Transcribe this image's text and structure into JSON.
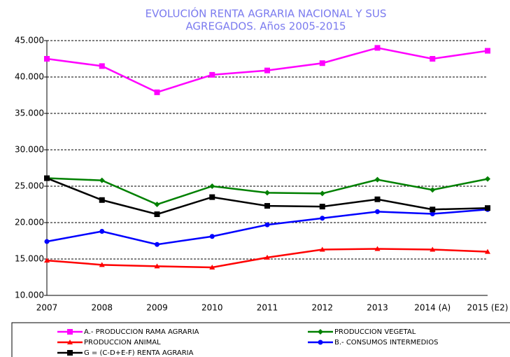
{
  "chart_data": {
    "type": "line",
    "title": [
      "EVOLUCIÓN RENTA AGRARIA NACIONAL Y SUS",
      "AGREGADOS. Años 2005-2015"
    ],
    "categories": [
      "2007",
      "2008",
      "2009",
      "2010",
      "2011",
      "2012",
      "2013",
      "2014 (A)",
      "2015 (E2)"
    ],
    "series": [
      {
        "name": "A.- PRODUCCION RAMA AGRARIA",
        "color": "#ff00ff",
        "marker": "square",
        "values": [
          42500,
          41500,
          37900,
          40300,
          40900,
          41900,
          44000,
          42500,
          43600
        ]
      },
      {
        "name": "PRODUCCION VEGETAL",
        "color": "#008000",
        "marker": "diamond",
        "values": [
          26100,
          25800,
          22500,
          25000,
          24100,
          24000,
          25900,
          24500,
          26000
        ]
      },
      {
        "name": "PRODUCCION ANIMAL",
        "color": "#ff0000",
        "marker": "triangle",
        "values": [
          14800,
          14200,
          14000,
          13850,
          15200,
          16300,
          16400,
          16300,
          16000
        ]
      },
      {
        "name": "B.- CONSUMOS INTERMEDIOS",
        "color": "#0000ff",
        "marker": "circle",
        "values": [
          17400,
          18800,
          17000,
          18100,
          19700,
          20600,
          21500,
          21200,
          21800
        ]
      },
      {
        "name": "G = (C-D+E-F)  RENTA AGRARIA",
        "color": "#000000",
        "marker": "square",
        "values": [
          26100,
          23100,
          21150,
          23500,
          22300,
          22200,
          23200,
          21800,
          22000
        ]
      }
    ],
    "ylim": [
      10000,
      45000
    ],
    "yticks": [
      {
        "value": 10000,
        "label": "10.000"
      },
      {
        "value": 15000,
        "label": "15.000"
      },
      {
        "value": 20000,
        "label": "20.000"
      },
      {
        "value": 25000,
        "label": "25.000"
      },
      {
        "value": 30000,
        "label": "30.000"
      },
      {
        "value": 35000,
        "label": "35.000"
      },
      {
        "value": 40000,
        "label": "40.000"
      },
      {
        "value": 45000,
        "label": "45.000"
      }
    ],
    "grid": true
  }
}
